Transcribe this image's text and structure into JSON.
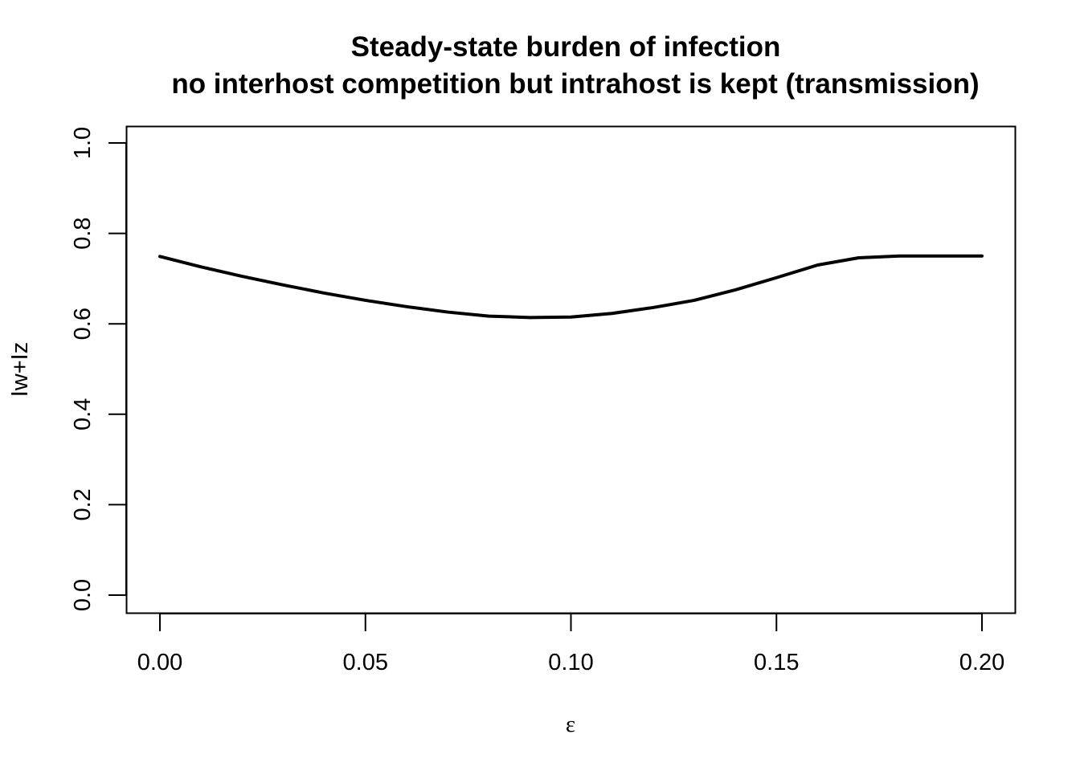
{
  "chart_data": {
    "type": "line",
    "title": "Steady-state burden of infection",
    "subtitle": "no interhost competition but intrahost is kept (transmission)",
    "xlabel": "ε",
    "ylabel": "Iw+Iz",
    "xlim": [
      0.0,
      0.2
    ],
    "ylim": [
      0.0,
      1.0
    ],
    "x_ticks": [
      "0.00",
      "0.05",
      "0.10",
      "0.15",
      "0.20"
    ],
    "y_ticks": [
      "0.0",
      "0.2",
      "0.4",
      "0.6",
      "0.8",
      "1.0"
    ],
    "grid": false,
    "legend": "none",
    "line_color": "#000000",
    "series": [
      {
        "x": [
          0.0,
          0.01,
          0.02,
          0.03,
          0.04,
          0.05,
          0.06,
          0.07,
          0.08,
          0.09,
          0.1,
          0.11,
          0.12,
          0.13,
          0.14,
          0.15,
          0.16,
          0.17,
          0.18,
          0.19,
          0.2
        ],
        "values": [
          0.749,
          0.726,
          0.705,
          0.686,
          0.668,
          0.652,
          0.638,
          0.626,
          0.617,
          0.614,
          0.615,
          0.623,
          0.636,
          0.652,
          0.675,
          0.702,
          0.73,
          0.746,
          0.75,
          0.75,
          0.75
        ]
      }
    ]
  }
}
